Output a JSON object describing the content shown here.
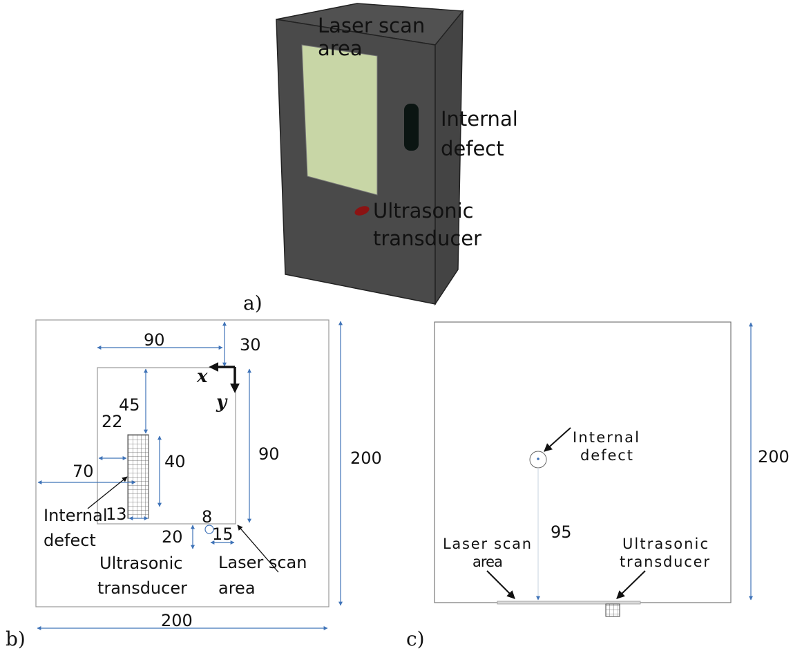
{
  "panels": {
    "a": "a)",
    "b": "b)",
    "c": "c)"
  },
  "panel_a": {
    "laser_scan_area_line1": "Laser scan",
    "laser_scan_area_line2": "area",
    "internal_defect_line1": "Internal",
    "internal_defect_line2": "defect",
    "ultrasonic_line1": "Ultrasonic",
    "ultrasonic_line2": "transducer"
  },
  "panel_b": {
    "dims": {
      "d90_top": "90",
      "d30": "30",
      "d45": "45",
      "d22": "22",
      "d70": "70",
      "d40": "40",
      "d13": "13",
      "d90_right": "90",
      "d200_right": "200",
      "d20": "20",
      "d8": "8",
      "d15": "15",
      "d200_bottom": "200"
    },
    "axis_x": "x",
    "axis_y": "y",
    "internal_defect_line1": "Internal",
    "internal_defect_line2": "defect",
    "ultrasonic_line1": "Ultrasonic",
    "ultrasonic_line2": "transducer",
    "laser_scan_line1": "Laser scan",
    "laser_scan_line2": "area"
  },
  "panel_c": {
    "internal_defect_line1": "Internal",
    "internal_defect_line2": "defect",
    "d95": "95",
    "d200": "200",
    "laser_scan_line1": "Laser scan",
    "laser_scan_line2": "area",
    "ultrasonic_line1": "Ultrasonic",
    "ultrasonic_line2": "transducer"
  },
  "colors": {
    "cube_front": "#4a4a4a",
    "cube_side": "#444444",
    "cube_top": "#515151",
    "scan_area": "#c8d6a6",
    "defect": "#0b1512",
    "transducer": "#8b1313",
    "dimension": "#3f73b8"
  }
}
